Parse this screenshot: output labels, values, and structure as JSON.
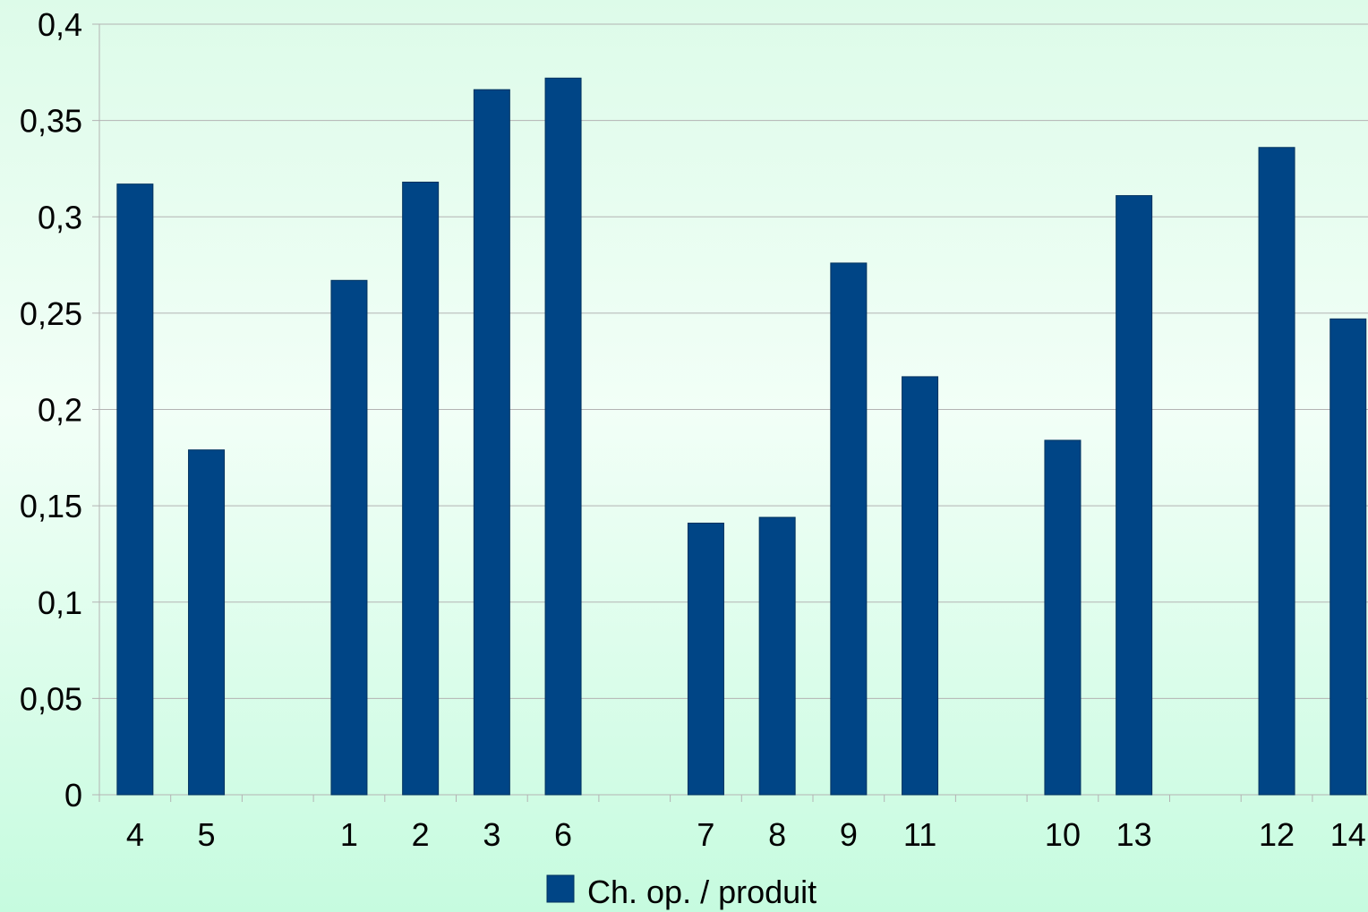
{
  "chart_data": {
    "type": "bar",
    "categories": [
      "4",
      "5",
      "",
      "1",
      "2",
      "3",
      "6",
      "",
      "7",
      "8",
      "9",
      "11",
      "",
      "10",
      "13",
      "",
      "12",
      "14"
    ],
    "series": [
      {
        "name": "Ch. op. / produit",
        "values": [
          0.317,
          0.179,
          null,
          0.267,
          0.318,
          0.366,
          0.372,
          null,
          0.141,
          0.144,
          0.276,
          0.217,
          null,
          0.184,
          0.311,
          null,
          0.336,
          0.247
        ]
      }
    ],
    "y_ticks": [
      "0",
      "0,05",
      "0,1",
      "0,15",
      "0,2",
      "0,25",
      "0,3",
      "0,35",
      "0,4"
    ],
    "ylim": [
      0,
      0.4
    ],
    "grid": true,
    "legend_position": "bottom",
    "colors": {
      "bar": "#004586",
      "grid": "#b3b3b3",
      "axis": "#b3b3b3"
    }
  }
}
